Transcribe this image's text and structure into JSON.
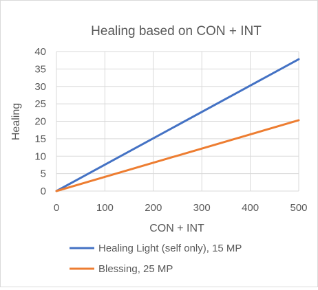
{
  "chart_data": {
    "type": "line",
    "title": "Healing based on CON + INT",
    "xlabel": "CON + INT",
    "ylabel": "Healing",
    "xlim": [
      0,
      500
    ],
    "ylim": [
      0,
      40
    ],
    "x_ticks": [
      0,
      100,
      200,
      300,
      400,
      500
    ],
    "y_ticks": [
      0,
      5,
      10,
      15,
      20,
      25,
      30,
      35,
      40
    ],
    "grid": true,
    "legend_position": "bottom",
    "series": [
      {
        "name": "Healing Light (self only), 15 MP",
        "color": "#4472C4",
        "x": [
          0,
          500
        ],
        "y": [
          0,
          37.8
        ]
      },
      {
        "name": "Blessing, 25 MP",
        "color": "#ED7D31",
        "x": [
          0,
          500
        ],
        "y": [
          0,
          20.3
        ]
      }
    ]
  }
}
